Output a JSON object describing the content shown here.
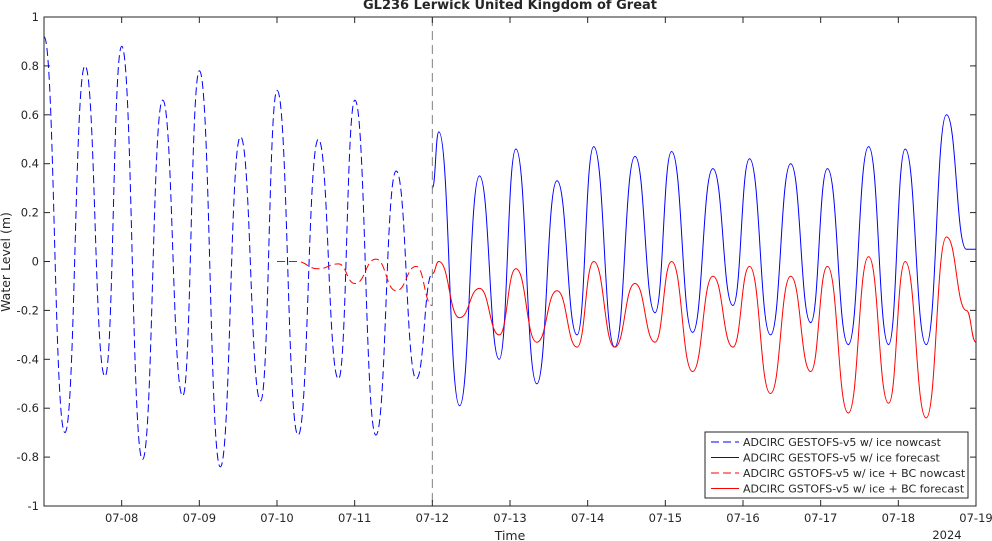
{
  "chart_data": {
    "type": "line",
    "title": "GL236 Lerwick United Kingdom of Great",
    "xlabel": "Time",
    "ylabel": "Water Level (m)",
    "year_label": "2024",
    "xlim": [
      "2024-07-07 00:00",
      "2024-07-19 00:00"
    ],
    "ylim": [
      -1,
      1
    ],
    "x_ticks": [
      "07-08",
      "07-09",
      "07-10",
      "07-11",
      "07-12",
      "07-13",
      "07-14",
      "07-15",
      "07-16",
      "07-17",
      "07-18",
      "07-19"
    ],
    "y_ticks": [
      1,
      0.8,
      0.6,
      0.4,
      0.2,
      0,
      -0.2,
      -0.4,
      -0.6,
      -0.8,
      -1
    ],
    "divider_time": "2024-07-12 00:00",
    "grid": false,
    "legend_position": "bottom-right",
    "colors": {
      "blue": "#0000ff",
      "red": "#ff0000",
      "divider": "#808080",
      "axis": "#262626"
    },
    "series": [
      {
        "name": "ADCIRC GESTOFS-v5 w/ ice nowcast",
        "color": "#0000ff",
        "dash": true,
        "x": [
          "2024-07-07 00:00",
          "2024-07-07 06:27",
          "2024-07-07 12:41",
          "2024-07-07 18:51",
          "2024-07-08 00:00",
          "2024-07-08 06:27",
          "2024-07-08 12:41",
          "2024-07-08 18:51",
          "2024-07-09 00:01",
          "2024-07-09 06:29",
          "2024-07-09 12:44",
          "2024-07-09 18:56",
          "2024-07-10 00:02",
          "2024-07-10 06:31",
          "2024-07-10 12:47",
          "2024-07-10 19:00",
          "2024-07-11 00:04",
          "2024-07-11 06:33",
          "2024-07-11 12:50",
          "2024-07-11 19:03",
          "2024-07-12 00:00"
        ],
        "y": [
          0.92,
          -0.7,
          0.8,
          -0.47,
          0.88,
          -0.81,
          0.66,
          -0.55,
          0.78,
          -0.84,
          0.51,
          -0.57,
          0.7,
          -0.71,
          0.5,
          -0.48,
          0.66,
          -0.71,
          0.37,
          -0.48,
          -0.05
        ]
      },
      {
        "name": "ADCIRC GESTOFS-v5 w/ ice forecast",
        "color": "#0000ff",
        "dash": false,
        "x": [
          "2024-07-12 00:00",
          "2024-07-12 02:00",
          "2024-07-12 08:25",
          "2024-07-12 14:35",
          "2024-07-12 20:40",
          "2024-07-13 01:49",
          "2024-07-13 08:17",
          "2024-07-13 14:32",
          "2024-07-13 20:44",
          "2024-07-14 01:52",
          "2024-07-14 08:21",
          "2024-07-14 14:37",
          "2024-07-14 20:49",
          "2024-07-15 01:56",
          "2024-07-15 08:25",
          "2024-07-15 14:41",
          "2024-07-15 20:53",
          "2024-07-16 02:00",
          "2024-07-16 08:29",
          "2024-07-16 14:45",
          "2024-07-16 20:56",
          "2024-07-17 02:04",
          "2024-07-17 08:33",
          "2024-07-17 14:49",
          "2024-07-17 20:59",
          "2024-07-18 02:08",
          "2024-07-18 08:37",
          "2024-07-18 14:53",
          "2024-07-18 21:02",
          "2024-07-19 00:00"
        ],
        "y": [
          0.3,
          0.53,
          -0.59,
          0.35,
          -0.4,
          0.46,
          -0.5,
          0.33,
          -0.3,
          0.47,
          -0.35,
          0.43,
          -0.21,
          0.45,
          -0.29,
          0.38,
          -0.18,
          0.42,
          -0.3,
          0.4,
          -0.25,
          0.38,
          -0.34,
          0.47,
          -0.34,
          0.46,
          -0.34,
          0.6,
          0.05,
          0.05
        ]
      },
      {
        "name": "ADCIRC GSTOFS-v5 w/ ice + BC nowcast",
        "color": "#ff0000",
        "dash": true,
        "x": [
          "2024-07-10 00:00",
          "2024-07-10 06:00",
          "2024-07-10 12:41",
          "2024-07-10 19:00",
          "2024-07-11 00:04",
          "2024-07-11 06:33",
          "2024-07-11 12:50",
          "2024-07-11 19:03",
          "2024-07-12 00:00"
        ],
        "y": [
          0.0,
          0.0,
          -0.03,
          -0.01,
          -0.09,
          0.01,
          -0.12,
          -0.02,
          -0.18
        ]
      },
      {
        "name": "ADCIRC GSTOFS-v5 w/ ice + BC forecast",
        "color": "#ff0000",
        "dash": false,
        "x": [
          "2024-07-12 00:00",
          "2024-07-12 02:00",
          "2024-07-12 08:25",
          "2024-07-12 14:35",
          "2024-07-12 20:40",
          "2024-07-13 01:49",
          "2024-07-13 08:17",
          "2024-07-13 14:32",
          "2024-07-13 20:44",
          "2024-07-14 01:52",
          "2024-07-14 08:21",
          "2024-07-14 14:37",
          "2024-07-14 20:49",
          "2024-07-15 01:56",
          "2024-07-15 08:25",
          "2024-07-15 14:41",
          "2024-07-15 20:53",
          "2024-07-16 02:00",
          "2024-07-16 08:29",
          "2024-07-16 14:45",
          "2024-07-16 20:56",
          "2024-07-17 02:04",
          "2024-07-17 08:33",
          "2024-07-17 14:49",
          "2024-07-17 20:59",
          "2024-07-18 02:08",
          "2024-07-18 08:37",
          "2024-07-18 14:53",
          "2024-07-18 21:02",
          "2024-07-19 00:00"
        ],
        "y": [
          -0.05,
          0.0,
          -0.23,
          -0.11,
          -0.3,
          -0.03,
          -0.33,
          -0.12,
          -0.35,
          0.0,
          -0.35,
          -0.09,
          -0.33,
          0.0,
          -0.45,
          -0.06,
          -0.35,
          -0.02,
          -0.54,
          -0.06,
          -0.45,
          -0.02,
          -0.62,
          0.02,
          -0.58,
          0.0,
          -0.64,
          0.1,
          -0.2,
          -0.33
        ]
      }
    ]
  }
}
